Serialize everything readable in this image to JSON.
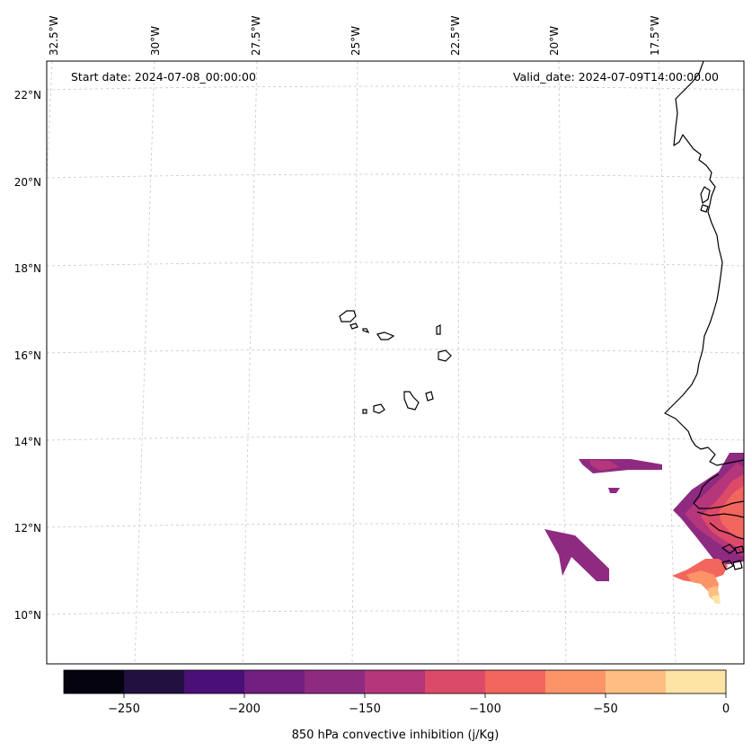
{
  "header": {
    "start_date": "Start date: 2024-07-08_00:00:00",
    "valid_date": "Valid_date: 2024-07-09T14:00:00.00"
  },
  "lon_labels": [
    "32.5°W",
    "30°W",
    "27.5°W",
    "25°W",
    "22.5°W",
    "20°W",
    "17.5°W"
  ],
  "lat_labels": [
    "22°N",
    "20°N",
    "18°N",
    "16°N",
    "14°N",
    "12°N",
    "10°N"
  ],
  "colorbar": {
    "label": "850 hPa convective inhibition (j/Kg)",
    "ticks": [
      "−250",
      "−200",
      "−150",
      "−100",
      "−50",
      "0"
    ],
    "colors": [
      "#04030f",
      "#211040",
      "#4b0f78",
      "#721f81",
      "#8f2a81",
      "#b5367a",
      "#dc4a69",
      "#f3665d",
      "#fd9468",
      "#febd82",
      "#fde3a4"
    ]
  },
  "field_colors": {
    "c150": "#8f2a81",
    "c125": "#b5367a",
    "c100": "#dc4a69",
    "c75": "#f3665d",
    "c50": "#fd9468",
    "c25": "#febd82",
    "c0": "#fde3a4"
  }
}
